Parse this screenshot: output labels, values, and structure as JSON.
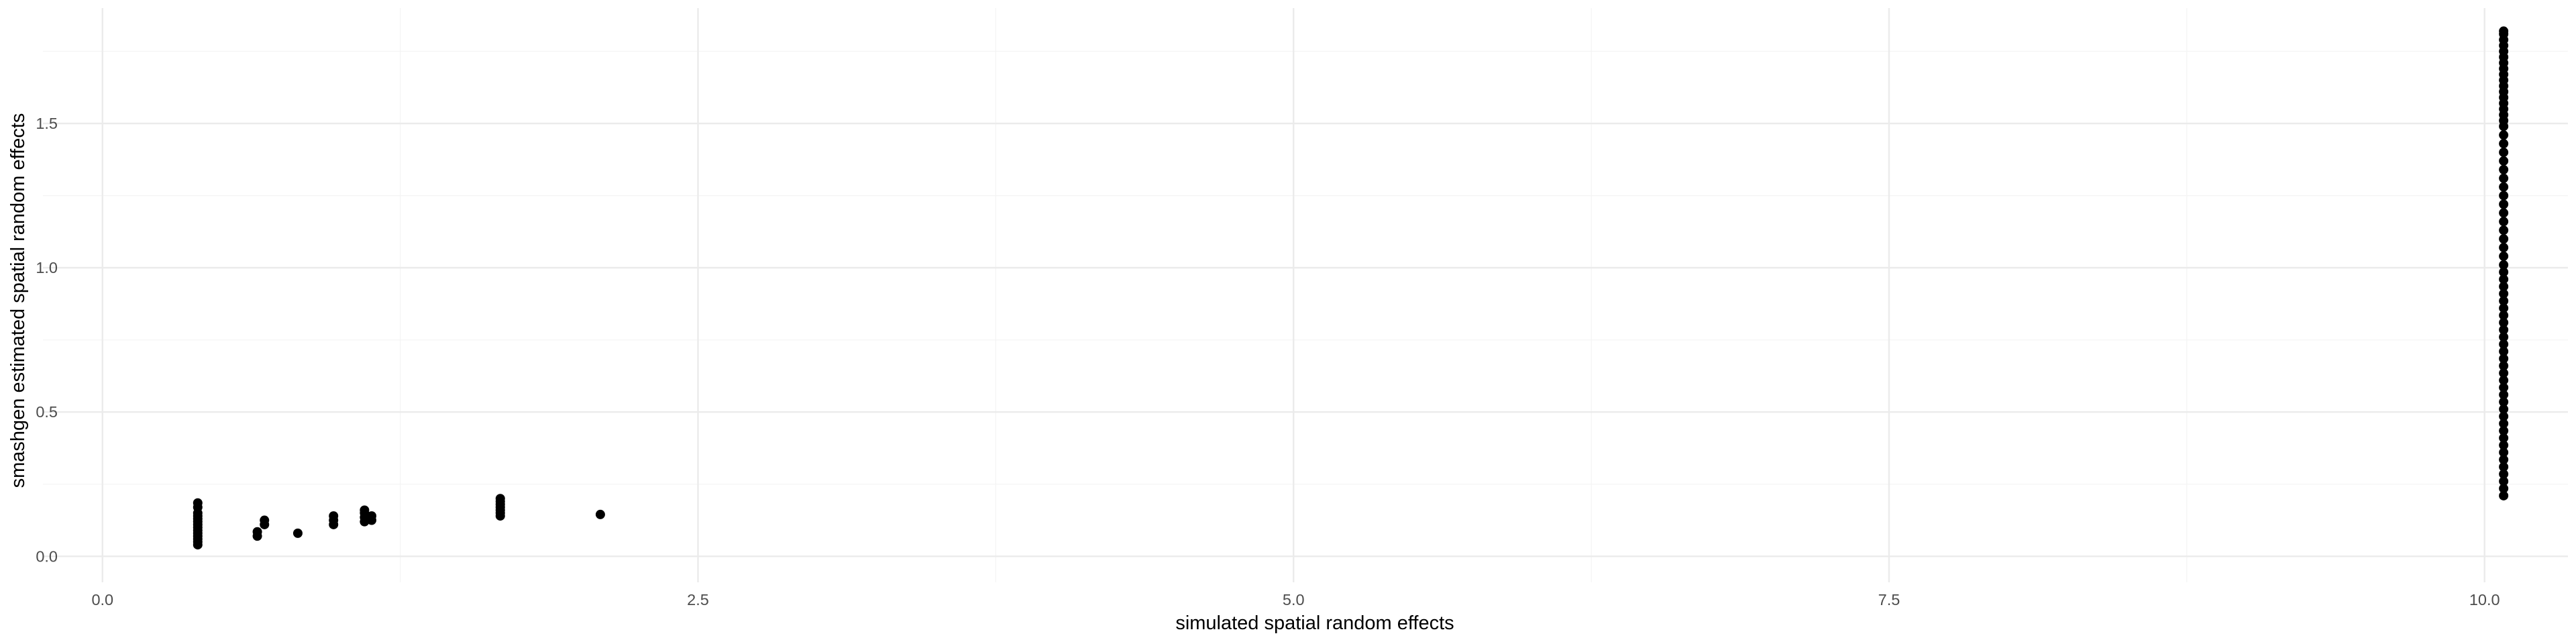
{
  "chart_data": {
    "type": "scatter",
    "title": "",
    "xlabel": "simulated spatial random effects",
    "ylabel": "smashgen estimated spatial random effects",
    "xlim": [
      -0.25,
      10.35
    ],
    "ylim": [
      -0.09,
      1.9
    ],
    "grid": true,
    "legend": "none",
    "x_ticks": [
      {
        "value": 0.0,
        "label": "0.0"
      },
      {
        "value": 2.5,
        "label": "2.5"
      },
      {
        "value": 5.0,
        "label": "5.0"
      },
      {
        "value": 7.5,
        "label": "7.5"
      },
      {
        "value": 10.0,
        "label": "10.0"
      }
    ],
    "y_ticks": [
      {
        "value": 0.0,
        "label": "0.0"
      },
      {
        "value": 0.5,
        "label": "0.5"
      },
      {
        "value": 1.0,
        "label": "1.0"
      },
      {
        "value": 1.5,
        "label": "1.5"
      }
    ],
    "x_minor": [
      1.25,
      3.75,
      6.25,
      8.75
    ],
    "y_minor": [
      0.25,
      0.75,
      1.25,
      1.75
    ],
    "point_color": "#000000",
    "series": [
      {
        "points": [
          [
            0.4,
            0.04
          ],
          [
            0.4,
            0.05
          ],
          [
            0.4,
            0.06
          ],
          [
            0.4,
            0.07
          ],
          [
            0.4,
            0.08
          ],
          [
            0.4,
            0.09
          ],
          [
            0.4,
            0.1
          ],
          [
            0.4,
            0.11
          ],
          [
            0.4,
            0.12
          ],
          [
            0.4,
            0.13
          ],
          [
            0.4,
            0.14
          ],
          [
            0.4,
            0.15
          ],
          [
            0.4,
            0.17
          ],
          [
            0.4,
            0.185
          ],
          [
            0.65,
            0.07
          ],
          [
            0.65,
            0.085
          ],
          [
            0.68,
            0.11
          ],
          [
            0.68,
            0.125
          ],
          [
            0.82,
            0.08
          ],
          [
            0.97,
            0.11
          ],
          [
            0.97,
            0.125
          ],
          [
            0.97,
            0.14
          ],
          [
            1.1,
            0.12
          ],
          [
            1.1,
            0.135
          ],
          [
            1.1,
            0.15
          ],
          [
            1.1,
            0.16
          ],
          [
            1.13,
            0.125
          ],
          [
            1.13,
            0.14
          ],
          [
            1.67,
            0.14
          ],
          [
            1.67,
            0.15
          ],
          [
            1.67,
            0.16
          ],
          [
            1.67,
            0.17
          ],
          [
            1.67,
            0.18
          ],
          [
            1.67,
            0.19
          ],
          [
            1.67,
            0.2
          ],
          [
            2.09,
            0.145
          ],
          [
            10.08,
            0.21
          ],
          [
            10.08,
            0.235
          ],
          [
            10.08,
            0.26
          ],
          [
            10.08,
            0.285
          ],
          [
            10.08,
            0.31
          ],
          [
            10.08,
            0.335
          ],
          [
            10.08,
            0.36
          ],
          [
            10.08,
            0.385
          ],
          [
            10.08,
            0.41
          ],
          [
            10.08,
            0.435
          ],
          [
            10.08,
            0.46
          ],
          [
            10.08,
            0.485
          ],
          [
            10.08,
            0.51
          ],
          [
            10.08,
            0.535
          ],
          [
            10.08,
            0.56
          ],
          [
            10.08,
            0.585
          ],
          [
            10.08,
            0.61
          ],
          [
            10.08,
            0.635
          ],
          [
            10.08,
            0.66
          ],
          [
            10.08,
            0.685
          ],
          [
            10.08,
            0.71
          ],
          [
            10.08,
            0.735
          ],
          [
            10.08,
            0.76
          ],
          [
            10.08,
            0.785
          ],
          [
            10.08,
            0.81
          ],
          [
            10.08,
            0.835
          ],
          [
            10.08,
            0.86
          ],
          [
            10.08,
            0.885
          ],
          [
            10.08,
            0.91
          ],
          [
            10.08,
            0.935
          ],
          [
            10.08,
            0.96
          ],
          [
            10.08,
            0.985
          ],
          [
            10.08,
            1.01
          ],
          [
            10.08,
            1.04
          ],
          [
            10.08,
            1.07
          ],
          [
            10.08,
            1.1
          ],
          [
            10.08,
            1.13
          ],
          [
            10.08,
            1.16
          ],
          [
            10.08,
            1.19
          ],
          [
            10.08,
            1.22
          ],
          [
            10.08,
            1.25
          ],
          [
            10.08,
            1.28
          ],
          [
            10.08,
            1.31
          ],
          [
            10.08,
            1.34
          ],
          [
            10.08,
            1.37
          ],
          [
            10.08,
            1.4
          ],
          [
            10.08,
            1.43
          ],
          [
            10.08,
            1.46
          ],
          [
            10.08,
            1.49
          ],
          [
            10.08,
            1.51
          ],
          [
            10.08,
            1.53
          ],
          [
            10.08,
            1.55
          ],
          [
            10.08,
            1.57
          ],
          [
            10.08,
            1.59
          ],
          [
            10.08,
            1.61
          ],
          [
            10.08,
            1.63
          ],
          [
            10.08,
            1.65
          ],
          [
            10.08,
            1.67
          ],
          [
            10.08,
            1.69
          ],
          [
            10.08,
            1.71
          ],
          [
            10.08,
            1.73
          ],
          [
            10.08,
            1.75
          ],
          [
            10.08,
            1.77
          ],
          [
            10.08,
            1.79
          ],
          [
            10.08,
            1.81
          ],
          [
            10.08,
            1.82
          ]
        ]
      }
    ]
  }
}
